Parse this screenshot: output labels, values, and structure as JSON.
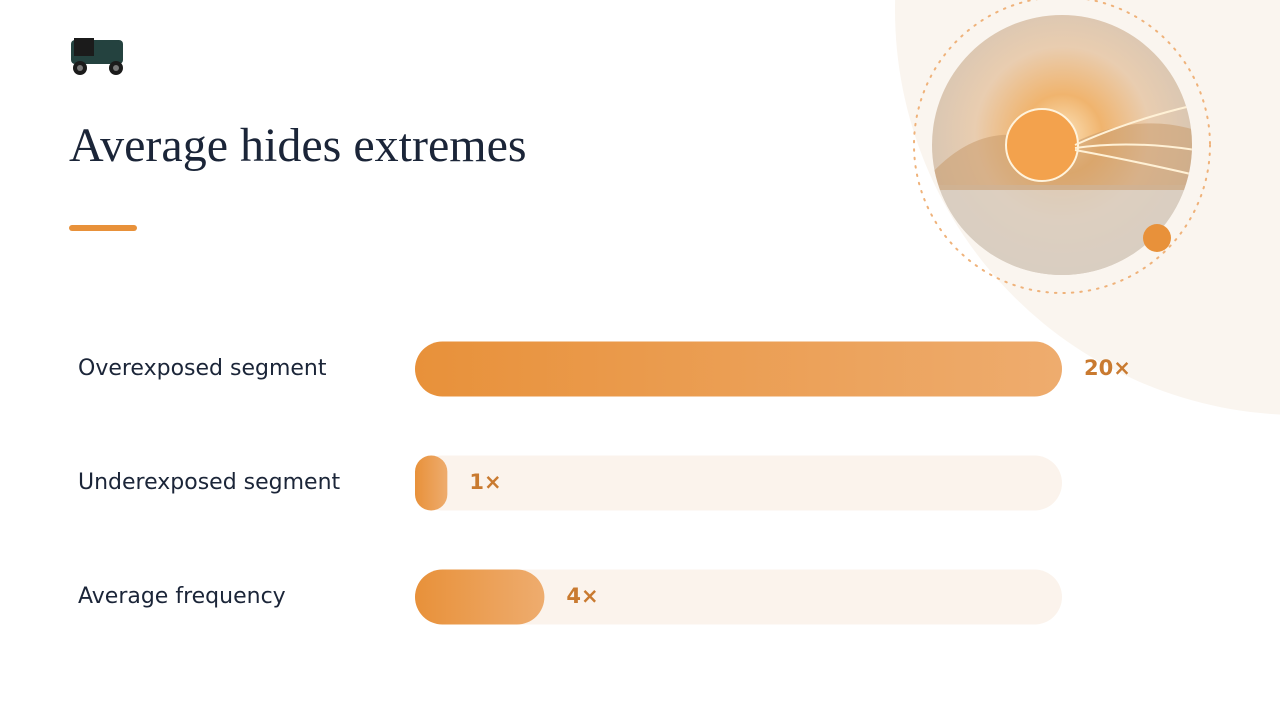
{
  "chart_data": {
    "type": "bar",
    "title": "Average hides extremes",
    "categories": [
      "Overexposed segment",
      "Underexposed segment",
      "Average frequency"
    ],
    "values": [
      20,
      1,
      4
    ],
    "value_labels": [
      "20×",
      "1×",
      "4×"
    ],
    "xlim": [
      0,
      20
    ],
    "color": "#e8913a"
  }
}
